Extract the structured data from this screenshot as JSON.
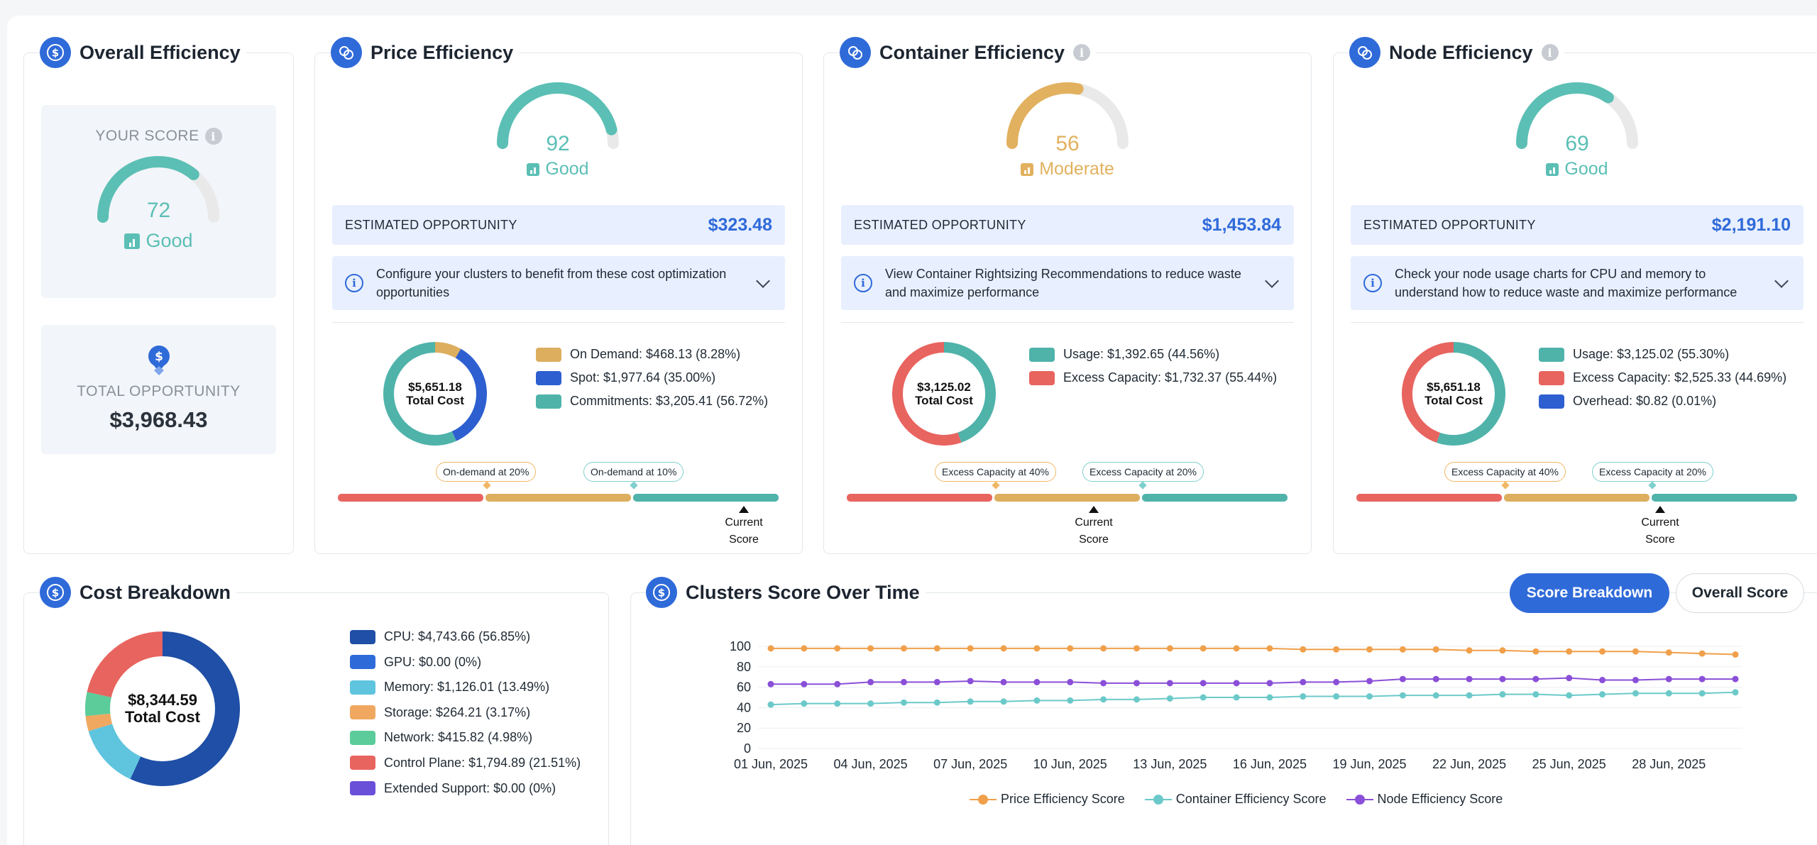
{
  "colors": {
    "good": "#5bbfb5",
    "moderate": "#e2b15f",
    "track": "#e9e9e9",
    "blue": "#2f6ad9",
    "red": "#e8645f",
    "amber": "#dcae5e",
    "teal": "#4fb3aa"
  },
  "overall": {
    "title": "Overall Efficiency",
    "score_label": "YOUR SCORE",
    "score": "72",
    "score_value": 72,
    "rating": "Good",
    "total_label": "TOTAL OPPORTUNITY",
    "total_value": "$3,968.43"
  },
  "price": {
    "title": "Price Efficiency",
    "score": "92",
    "score_value": 92,
    "rating": "Good",
    "opp_label": "ESTIMATED OPPORTUNITY",
    "opp_value": "$323.48",
    "hint": "Configure your clusters to benefit from these cost optimization opportunities",
    "donut_value": "$5,651.18",
    "donut_label": "Total Cost",
    "legend": [
      {
        "label": "On Demand: $468.13 (8.28%)",
        "pct": 8.28,
        "color": "#dcae5e"
      },
      {
        "label": "Spot: $1,977.64 (35.00%)",
        "pct": 35.0,
        "color": "#2d5fd0"
      },
      {
        "label": "Commitments: $3,205.41 (56.72%)",
        "pct": 56.72,
        "color": "#4fb3aa"
      }
    ],
    "callouts": [
      "On-demand at 20%",
      "On-demand at 10%"
    ],
    "current": [
      "Current",
      "Score"
    ]
  },
  "container": {
    "title": "Container Efficiency",
    "score": "56",
    "score_value": 56,
    "rating": "Moderate",
    "opp_label": "ESTIMATED OPPORTUNITY",
    "opp_value": "$1,453.84",
    "hint": "View Container Rightsizing Recommendations to reduce waste and maximize performance",
    "donut_value": "$3,125.02",
    "donut_label": "Total Cost",
    "legend": [
      {
        "label": "Usage: $1,392.65 (44.56%)",
        "pct": 44.56,
        "color": "#4fb3aa"
      },
      {
        "label": "Excess Capacity: $1,732.37 (55.44%)",
        "pct": 55.44,
        "color": "#e8645f"
      }
    ],
    "callouts": [
      "Excess Capacity at 40%",
      "Excess Capacity at 20%"
    ],
    "current": [
      "Current",
      "Score"
    ]
  },
  "node": {
    "title": "Node Efficiency",
    "score": "69",
    "score_value": 69,
    "rating": "Good",
    "opp_label": "ESTIMATED OPPORTUNITY",
    "opp_value": "$2,191.10",
    "hint": "Check your node usage charts for CPU and memory to understand how to reduce waste and maximize performance",
    "donut_value": "$5,651.18",
    "donut_label": "Total Cost",
    "legend": [
      {
        "label": "Usage: $3,125.02 (55.30%)",
        "pct": 55.3,
        "color": "#4fb3aa"
      },
      {
        "label": "Excess Capacity: $2,525.33 (44.69%)",
        "pct": 44.69,
        "color": "#e8645f"
      },
      {
        "label": "Overhead: $0.82 (0.01%)",
        "pct": 0.01,
        "color": "#2d5fd0"
      }
    ],
    "callouts": [
      "Excess Capacity at 40%",
      "Excess Capacity at 20%"
    ],
    "current": [
      "Current",
      "Score"
    ]
  },
  "cost": {
    "title": "Cost Breakdown",
    "donut_value": "$8,344.59",
    "donut_label": "Total Cost",
    "legend": [
      {
        "label": "CPU: $4,743.66 (56.85%)",
        "pct": 56.85,
        "color": "#1f4fa6"
      },
      {
        "label": "GPU: $0.00 (0%)",
        "pct": 0,
        "color": "#2f6ad9"
      },
      {
        "label": "Memory: $1,126.01 (13.49%)",
        "pct": 13.49,
        "color": "#5fc4de"
      },
      {
        "label": "Storage: $264.21 (3.17%)",
        "pct": 3.17,
        "color": "#f0a860"
      },
      {
        "label": "Network: $415.82 (4.98%)",
        "pct": 4.98,
        "color": "#5bcc9a"
      },
      {
        "label": "Control Plane: $1,794.89 (21.51%)",
        "pct": 21.51,
        "color": "#e8645f"
      },
      {
        "label": "Extended Support: $0.00 (0%)",
        "pct": 0,
        "color": "#6a4fd8"
      }
    ]
  },
  "clusters": {
    "title": "Clusters Score Over Time",
    "buttons": {
      "breakdown": "Score Breakdown",
      "overall": "Overall Score"
    }
  },
  "chart_data": {
    "type": "line",
    "title": "Clusters Score Over Time",
    "xlabel": "",
    "ylabel": "",
    "ylim": [
      0,
      100
    ],
    "yticks": [
      0,
      20,
      40,
      60,
      80,
      100
    ],
    "xtick_labels": [
      "01 Jun, 2025",
      "04 Jun, 2025",
      "07 Jun, 2025",
      "10 Jun, 2025",
      "13 Jun, 2025",
      "16 Jun, 2025",
      "19 Jun, 2025",
      "22 Jun, 2025",
      "25 Jun, 2025",
      "28 Jun, 2025"
    ],
    "x": [
      "01 Jun",
      "02 Jun",
      "03 Jun",
      "04 Jun",
      "05 Jun",
      "06 Jun",
      "07 Jun",
      "08 Jun",
      "09 Jun",
      "10 Jun",
      "11 Jun",
      "12 Jun",
      "13 Jun",
      "14 Jun",
      "15 Jun",
      "16 Jun",
      "17 Jun",
      "18 Jun",
      "19 Jun",
      "20 Jun",
      "21 Jun",
      "22 Jun",
      "23 Jun",
      "24 Jun",
      "25 Jun",
      "26 Jun",
      "27 Jun",
      "28 Jun",
      "29 Jun",
      "30 Jun"
    ],
    "legend_position": "bottom",
    "series": [
      {
        "name": "Price Efficiency Score",
        "color": "#f0a04b",
        "values": [
          98,
          98,
          98,
          98,
          98,
          98,
          98,
          98,
          98,
          98,
          98,
          98,
          98,
          98,
          98,
          98,
          97,
          97,
          97,
          97,
          97,
          96,
          96,
          95,
          95,
          95,
          95,
          94,
          93,
          92
        ]
      },
      {
        "name": "Container Efficiency Score",
        "color": "#6cc9c9",
        "values": [
          43,
          44,
          44,
          44,
          45,
          45,
          46,
          46,
          47,
          47,
          48,
          48,
          49,
          50,
          50,
          50,
          51,
          51,
          51,
          52,
          52,
          52,
          53,
          53,
          52,
          53,
          54,
          54,
          54,
          55
        ]
      },
      {
        "name": "Node Efficiency Score",
        "color": "#8a4fd8",
        "values": [
          63,
          63,
          63,
          65,
          65,
          65,
          66,
          65,
          65,
          65,
          64,
          64,
          64,
          64,
          64,
          64,
          65,
          65,
          66,
          68,
          68,
          68,
          68,
          68,
          69,
          67,
          67,
          68,
          68,
          68
        ]
      }
    ]
  }
}
